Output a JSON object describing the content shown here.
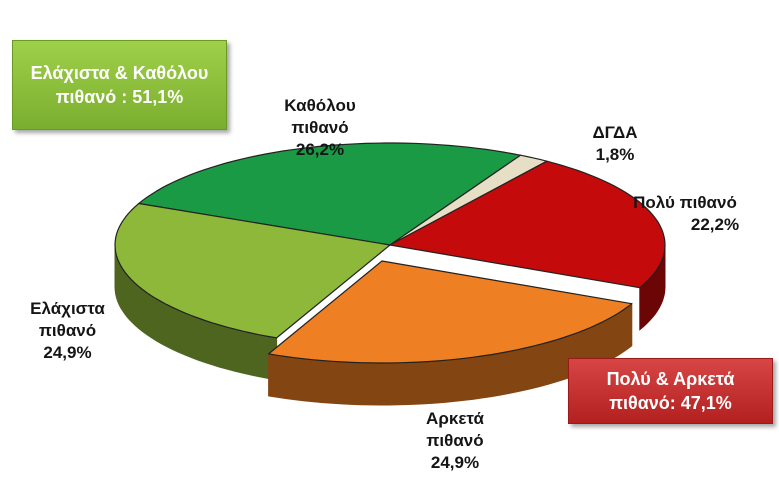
{
  "chart_data": {
    "type": "pie3d",
    "categories": [
      "Καθόλου πιθανό",
      "ΔΓΔΑ",
      "Πολύ πιθανό",
      "Αρκετά πιθανό",
      "Ελάχιστα πιθανό"
    ],
    "values": [
      26.2,
      1.8,
      22.2,
      24.9,
      24.9
    ],
    "value_labels": [
      "26,2%",
      "1,8%",
      "22,2%",
      "24,9%",
      "24,9%"
    ],
    "colors": [
      "#1a9a45",
      "#e6dfc6",
      "#c40a0a",
      "#ee7f22",
      "#8db83a"
    ],
    "annotations": [
      "Ελάχιστα & Καθόλου πιθανό : 51,1%",
      "Πολύ & Αρκετά πιθανό: 47,1%"
    ]
  }
}
